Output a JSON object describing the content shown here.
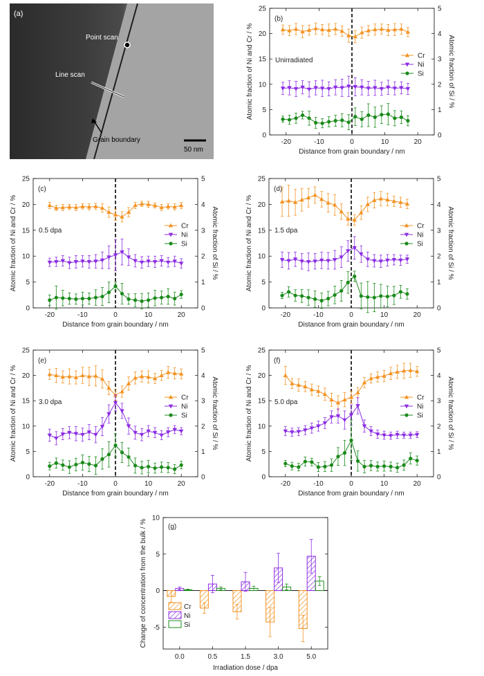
{
  "tem": {
    "label": "(a)",
    "point_scan": "Point scan",
    "line_scan": "Line scan",
    "grain_boundary": "Grain boundary",
    "scale_bar": "50 nm"
  },
  "colors": {
    "Cr": "#f39323",
    "Ni": "#8b2be2",
    "Si": "#1a8a1a"
  },
  "chart_data": [
    {
      "panel": "(b)",
      "type": "line",
      "annotation": "Unirradiated",
      "xlabel": "Distance from grain boundary / nm",
      "ylabel": "Atomic fraction of Ni and Cr / %",
      "ylabel2": "Atomic fraction of Si / %",
      "xlim": [
        -25,
        25
      ],
      "ylim": [
        0,
        25
      ],
      "y2lim": [
        0,
        5
      ],
      "xticks": [
        -20,
        -10,
        0,
        10,
        20
      ],
      "yticks": [
        0,
        5,
        10,
        15,
        20,
        25
      ],
      "y2ticks": [
        0,
        1,
        2,
        3,
        4,
        5
      ],
      "legend": "right",
      "x": [
        -21,
        -19,
        -17,
        -15,
        -13,
        -11,
        -9,
        -7,
        -5,
        -3,
        -1,
        1,
        3,
        5,
        7,
        9,
        11,
        13,
        15,
        17
      ],
      "series": [
        {
          "name": "Cr",
          "axis": "left",
          "marker": "triangle-up",
          "values": [
            20.8,
            20.6,
            20.9,
            20.4,
            20.7,
            21.0,
            20.8,
            20.7,
            20.9,
            20.5,
            19.6,
            19.4,
            20.2,
            20.6,
            20.8,
            20.9,
            20.7,
            20.8,
            20.9,
            20.3
          ],
          "errors": [
            0.9,
            1.0,
            1.1,
            1.2,
            1.0,
            1.1,
            1.0,
            1.2,
            1.1,
            1.0,
            1.3,
            1.2,
            1.1,
            1.0,
            1.1,
            1.0,
            1.1,
            1.2,
            1.0,
            0.9
          ]
        },
        {
          "name": "Ni",
          "axis": "left",
          "marker": "triangle-down",
          "values": [
            9.2,
            9.3,
            9.1,
            9.4,
            9.0,
            9.3,
            9.2,
            9.1,
            9.4,
            9.3,
            9.6,
            9.5,
            9.4,
            9.2,
            9.3,
            9.1,
            9.4,
            9.2,
            9.3,
            9.1
          ],
          "errors": [
            1.2,
            1.4,
            1.5,
            1.3,
            1.5,
            1.4,
            1.6,
            1.4,
            1.5,
            1.7,
            2.0,
            1.8,
            1.5,
            1.4,
            1.5,
            1.3,
            1.4,
            1.3,
            1.2,
            1.1
          ]
        },
        {
          "name": "Si",
          "axis": "right",
          "marker": "circle",
          "values": [
            0.62,
            0.6,
            0.66,
            0.78,
            0.66,
            0.48,
            0.46,
            0.52,
            0.56,
            0.58,
            0.5,
            0.72,
            0.62,
            0.78,
            0.7,
            0.8,
            0.82,
            0.66,
            0.7,
            0.56
          ],
          "errors": [
            0.12,
            0.18,
            0.2,
            0.15,
            0.28,
            0.22,
            0.18,
            0.2,
            0.22,
            0.26,
            0.3,
            0.35,
            0.3,
            0.45,
            0.4,
            0.35,
            0.42,
            0.3,
            0.25,
            0.2
          ]
        }
      ]
    },
    {
      "panel": "(c)",
      "type": "line",
      "annotation": "0.5 dpa",
      "xlabel": "Distance from grain boundary / nm",
      "ylabel": "Atomic fraction of Ni and Cr / %",
      "ylabel2": "Atomic fraction of Si / %",
      "xlim": [
        -25,
        25
      ],
      "ylim": [
        0,
        25
      ],
      "y2lim": [
        0,
        5
      ],
      "xticks": [
        -20,
        -10,
        0,
        10,
        20
      ],
      "yticks": [
        0,
        5,
        10,
        15,
        20,
        25
      ],
      "y2ticks": [
        0,
        1,
        2,
        3,
        4,
        5
      ],
      "legend": "right",
      "x": [
        -20,
        -18,
        -16,
        -14,
        -12,
        -10,
        -8,
        -6,
        -4,
        -2,
        0,
        2,
        4,
        6,
        8,
        10,
        12,
        14,
        16,
        18,
        20
      ],
      "series": [
        {
          "name": "Cr",
          "axis": "left",
          "marker": "triangle-up",
          "values": [
            19.8,
            19.3,
            19.4,
            19.5,
            19.4,
            19.6,
            19.5,
            19.6,
            19.3,
            18.5,
            18.0,
            17.6,
            18.5,
            19.8,
            20.1,
            20.0,
            19.8,
            19.4,
            19.6,
            19.5,
            19.8
          ],
          "errors": [
            0.6,
            0.5,
            0.6,
            0.5,
            0.6,
            0.5,
            0.6,
            0.6,
            0.8,
            1.0,
            1.1,
            1.0,
            0.9,
            0.6,
            0.5,
            0.6,
            0.5,
            0.6,
            0.5,
            0.6,
            0.6
          ]
        },
        {
          "name": "Ni",
          "axis": "left",
          "marker": "triangle-down",
          "values": [
            8.8,
            8.9,
            9.1,
            8.7,
            8.9,
            9.0,
            8.9,
            9.0,
            9.2,
            9.8,
            10.2,
            10.8,
            9.8,
            9.1,
            8.8,
            9.0,
            8.9,
            9.1,
            8.8,
            9.0,
            8.6
          ],
          "errors": [
            0.8,
            0.9,
            1.0,
            1.1,
            1.2,
            1.1,
            1.2,
            1.3,
            1.6,
            2.2,
            3.0,
            2.5,
            1.6,
            1.2,
            1.1,
            1.0,
            1.1,
            1.0,
            0.9,
            1.0,
            0.9
          ]
        },
        {
          "name": "Si",
          "axis": "right",
          "marker": "circle",
          "values": [
            0.3,
            0.4,
            0.38,
            0.36,
            0.34,
            0.36,
            0.36,
            0.4,
            0.44,
            0.6,
            0.84,
            0.55,
            0.34,
            0.3,
            0.26,
            0.3,
            0.38,
            0.4,
            0.44,
            0.36,
            0.52
          ],
          "errors": [
            0.2,
            0.45,
            0.3,
            0.22,
            0.2,
            0.25,
            0.22,
            0.3,
            0.35,
            0.4,
            0.15,
            0.4,
            0.2,
            0.25,
            0.3,
            0.28,
            0.3,
            0.25,
            0.3,
            0.25,
            0.15
          ]
        }
      ]
    },
    {
      "panel": "(d)",
      "type": "line",
      "annotation": "1.5 dpa",
      "xlabel": "Distance from grain boundary / nm",
      "ylabel": "Atomic fraction of Ni and Cr / %",
      "ylabel2": "Atomic fraction of Si / %",
      "xlim": [
        -25,
        25
      ],
      "ylim": [
        0,
        25
      ],
      "y2lim": [
        0,
        5
      ],
      "xticks": [
        -20,
        -10,
        0,
        10,
        20
      ],
      "yticks": [
        0,
        5,
        10,
        15,
        20,
        25
      ],
      "y2ticks": [
        0,
        1,
        2,
        3,
        4,
        5
      ],
      "legend": "right",
      "x": [
        -21,
        -19,
        -17,
        -15,
        -13,
        -11,
        -9,
        -7,
        -5,
        -3,
        -1,
        1,
        3,
        5,
        7,
        9,
        11,
        13,
        15,
        17
      ],
      "series": [
        {
          "name": "Cr",
          "axis": "left",
          "marker": "triangle-up",
          "values": [
            20.5,
            20.7,
            20.4,
            20.9,
            21.3,
            21.8,
            21.0,
            20.3,
            19.9,
            18.6,
            17.2,
            17.0,
            18.4,
            20.0,
            20.8,
            21.1,
            20.9,
            20.6,
            20.4,
            20.1
          ],
          "errors": [
            2.8,
            3.0,
            2.5,
            2.2,
            1.8,
            1.6,
            1.5,
            1.8,
            2.0,
            1.5,
            1.2,
            1.0,
            1.3,
            1.4,
            1.5,
            1.4,
            1.2,
            1.0,
            1.0,
            0.9
          ]
        },
        {
          "name": "Ni",
          "axis": "left",
          "marker": "triangle-down",
          "values": [
            9.3,
            9.1,
            9.4,
            9.0,
            8.9,
            9.0,
            9.2,
            9.1,
            9.3,
            9.8,
            11.0,
            11.6,
            10.4,
            9.4,
            9.1,
            9.0,
            9.2,
            9.3,
            9.2,
            9.4
          ],
          "errors": [
            1.5,
            1.6,
            1.4,
            1.5,
            1.7,
            1.5,
            1.6,
            1.6,
            1.8,
            2.0,
            2.0,
            2.2,
            1.6,
            1.4,
            1.2,
            1.2,
            1.1,
            1.0,
            1.0,
            0.8
          ]
        },
        {
          "name": "Si",
          "axis": "right",
          "marker": "circle",
          "values": [
            0.48,
            0.62,
            0.48,
            0.46,
            0.4,
            0.34,
            0.28,
            0.36,
            0.5,
            0.66,
            0.98,
            1.22,
            0.46,
            0.42,
            0.4,
            0.46,
            0.44,
            0.48,
            0.62,
            0.54
          ],
          "errors": [
            0.12,
            0.2,
            0.22,
            0.25,
            0.3,
            0.32,
            0.3,
            0.28,
            0.34,
            0.4,
            0.42,
            0.2,
            0.5,
            0.6,
            0.55,
            0.45,
            0.4,
            0.35,
            0.25,
            0.2
          ]
        }
      ]
    },
    {
      "panel": "(e)",
      "type": "line",
      "annotation": "3.0 dpa",
      "xlabel": "Distance from grain boundary / nm",
      "ylabel": "Atomic fraction of Ni and Cr / %",
      "ylabel2": "Atomic fraction of Si / %",
      "xlim": [
        -25,
        25
      ],
      "ylim": [
        0,
        25
      ],
      "y2lim": [
        0,
        5
      ],
      "xticks": [
        -20,
        -10,
        0,
        10,
        20
      ],
      "yticks": [
        0,
        5,
        10,
        15,
        20,
        25
      ],
      "y2ticks": [
        0,
        1,
        2,
        3,
        4,
        5
      ],
      "legend": "right",
      "x": [
        -20,
        -18,
        -16,
        -14,
        -12,
        -10,
        -8,
        -6,
        -4,
        -2,
        0,
        2,
        4,
        6,
        8,
        10,
        12,
        14,
        16,
        18,
        20
      ],
      "series": [
        {
          "name": "Cr",
          "axis": "left",
          "marker": "triangle-up",
          "values": [
            20.2,
            20.0,
            19.7,
            19.8,
            19.6,
            20.0,
            19.8,
            19.9,
            19.3,
            17.5,
            16.1,
            16.8,
            18.4,
            19.5,
            19.8,
            19.7,
            19.4,
            20.0,
            20.6,
            20.4,
            20.3
          ],
          "errors": [
            1.0,
            1.4,
            1.2,
            1.5,
            1.3,
            1.6,
            1.8,
            2.0,
            1.8,
            1.3,
            1.0,
            1.1,
            1.3,
            1.2,
            1.1,
            1.2,
            1.0,
            1.0,
            1.2,
            1.1,
            1.0
          ]
        },
        {
          "name": "Ni",
          "axis": "left",
          "marker": "triangle-down",
          "values": [
            8.2,
            7.6,
            8.4,
            8.7,
            8.5,
            8.3,
            8.8,
            8.3,
            9.9,
            12.4,
            14.6,
            13.0,
            10.0,
            8.7,
            8.3,
            9.0,
            8.7,
            8.2,
            8.8,
            9.3,
            9.0
          ],
          "errors": [
            1.2,
            1.3,
            1.1,
            1.2,
            1.4,
            1.3,
            1.5,
            1.6,
            1.8,
            1.8,
            1.6,
            1.5,
            1.6,
            1.3,
            1.2,
            1.1,
            1.0,
            0.9,
            0.9,
            0.8,
            0.7
          ]
        },
        {
          "name": "Si",
          "axis": "right",
          "marker": "circle",
          "values": [
            0.42,
            0.54,
            0.46,
            0.38,
            0.48,
            0.56,
            0.5,
            0.44,
            0.7,
            0.88,
            1.24,
            0.96,
            0.78,
            0.44,
            0.36,
            0.4,
            0.34,
            0.38,
            0.36,
            0.3,
            0.46
          ],
          "errors": [
            0.15,
            0.2,
            0.2,
            0.25,
            0.25,
            0.3,
            0.3,
            0.35,
            0.4,
            0.5,
            0.45,
            0.4,
            0.35,
            0.3,
            0.25,
            0.25,
            0.2,
            0.2,
            0.2,
            0.18,
            0.15
          ]
        }
      ]
    },
    {
      "panel": "(f)",
      "type": "line",
      "annotation": "5.0 dpa",
      "xlabel": "Distance from grain boundary / nm",
      "ylabel": "Atomic fraction of Ni and Cr / %",
      "ylabel2": "Atomic fraction of Si / %",
      "xlim": [
        -25,
        25
      ],
      "ylim": [
        0,
        25
      ],
      "y2lim": [
        0,
        5
      ],
      "xticks": [
        -20,
        -10,
        0,
        10,
        20
      ],
      "yticks": [
        0,
        5,
        10,
        15,
        20,
        25
      ],
      "y2ticks": [
        0,
        1,
        2,
        3,
        4,
        5
      ],
      "legend": "right",
      "x": [
        -20,
        -18,
        -16,
        -14,
        -12,
        -10,
        -8,
        -6,
        -4,
        -2,
        0,
        2,
        4,
        6,
        8,
        10,
        12,
        14,
        16,
        18,
        20
      ],
      "series": [
        {
          "name": "Cr",
          "axis": "left",
          "marker": "triangle-up",
          "values": [
            20.0,
            18.4,
            18.1,
            17.8,
            17.2,
            16.9,
            16.3,
            15.2,
            14.6,
            15.2,
            15.7,
            16.6,
            18.6,
            19.4,
            19.7,
            19.9,
            20.4,
            20.7,
            20.9,
            21.0,
            20.8
          ],
          "errors": [
            1.8,
            1.0,
            1.2,
            1.0,
            1.1,
            1.0,
            1.2,
            1.3,
            1.4,
            1.4,
            1.2,
            1.0,
            1.0,
            0.9,
            1.0,
            1.1,
            1.2,
            1.3,
            1.5,
            1.4,
            1.0
          ]
        },
        {
          "name": "Ni",
          "axis": "left",
          "marker": "triangle-down",
          "values": [
            9.0,
            8.8,
            8.9,
            9.2,
            9.6,
            10.0,
            10.6,
            11.8,
            12.0,
            11.2,
            12.2,
            14.0,
            10.0,
            9.0,
            8.4,
            8.2,
            8.1,
            8.3,
            8.2,
            8.2,
            8.3
          ],
          "errors": [
            0.9,
            0.8,
            0.8,
            0.9,
            1.0,
            1.0,
            1.1,
            1.2,
            1.4,
            1.8,
            2.0,
            1.6,
            1.2,
            0.9,
            0.8,
            0.8,
            0.7,
            0.7,
            0.6,
            0.6,
            0.6
          ]
        },
        {
          "name": "Si",
          "axis": "right",
          "marker": "circle",
          "values": [
            0.52,
            0.42,
            0.38,
            0.6,
            0.58,
            0.38,
            0.4,
            0.46,
            0.8,
            0.94,
            1.44,
            0.62,
            0.4,
            0.44,
            0.4,
            0.42,
            0.4,
            0.36,
            0.46,
            0.72,
            0.64
          ],
          "errors": [
            0.12,
            0.15,
            0.15,
            0.18,
            0.15,
            0.18,
            0.2,
            0.25,
            0.35,
            0.5,
            0.8,
            0.4,
            0.25,
            0.2,
            0.18,
            0.2,
            0.18,
            0.18,
            0.2,
            0.22,
            0.18
          ]
        }
      ]
    },
    {
      "panel": "(g)",
      "type": "bar",
      "xlabel": "Irradiation dose / dpa",
      "ylabel": "Change of concentration from the bulk / %",
      "categories": [
        "0.0",
        "0.5",
        "1.5",
        "3.0",
        "5.0"
      ],
      "ylim": [
        -8,
        10
      ],
      "yticks": [
        -5,
        0,
        5,
        10
      ],
      "legend": "bottom-left",
      "series": [
        {
          "name": "Cr",
          "values": [
            -0.8,
            -2.4,
            -2.9,
            -4.3,
            -5.2
          ],
          "errors": [
            0.8,
            0.7,
            1.0,
            2.0,
            1.8
          ]
        },
        {
          "name": "Ni",
          "values": [
            0.3,
            0.9,
            1.2,
            3.1,
            4.7
          ],
          "errors": [
            0.2,
            1.2,
            1.3,
            2.0,
            2.3
          ]
        },
        {
          "name": "Si",
          "values": [
            0.1,
            0.3,
            0.3,
            0.5,
            1.3
          ],
          "errors": [
            0.1,
            0.2,
            0.3,
            0.4,
            0.6
          ]
        }
      ]
    }
  ]
}
